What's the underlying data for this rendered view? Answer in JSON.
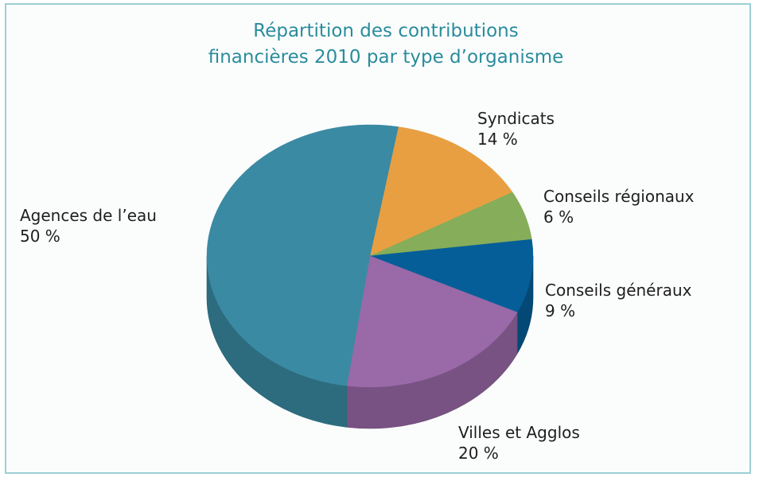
{
  "chart_data": {
    "type": "pie",
    "title": [
      "Répartition des contributions",
      "financières 2010 par type d’organisme"
    ],
    "categories": [
      "Syndicats",
      "Conseils régionaux",
      "Conseils généraux",
      "Villes et Agglos",
      "Agences de l’eau"
    ],
    "values": [
      14,
      6,
      9,
      20,
      50
    ],
    "value_labels": [
      "14 %",
      "6 %",
      "9 %",
      "20 %",
      "50 %"
    ],
    "colors": [
      "#e89f42",
      "#86ad5a",
      "#055e97",
      "#9a69a8",
      "#3a8aa3"
    ]
  }
}
